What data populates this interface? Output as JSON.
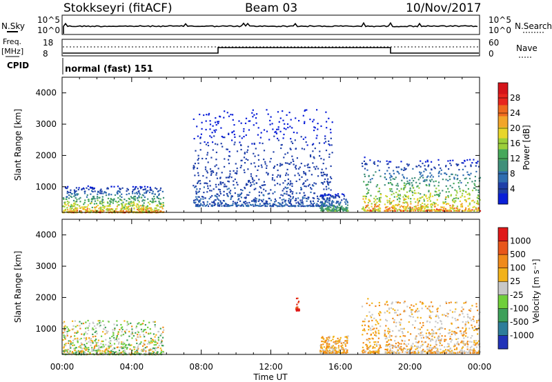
{
  "header": {
    "station": "Stokkseyri (fitACF)",
    "beam": "Beam 03",
    "date": "10/Nov/2017"
  },
  "noise_panel": {
    "left_label": "N.Sky",
    "right_label": "N.Search",
    "left_ticks": [
      "10^5",
      "10^0"
    ],
    "right_ticks": [
      "10^5",
      "10^0"
    ]
  },
  "freq_panel": {
    "left_label_1": "Freq.",
    "left_label_2": "[MHz]",
    "left_ticks": [
      "18",
      "8"
    ],
    "right_label": "Nave",
    "right_ticks": [
      "60",
      "0"
    ],
    "cpid_label": "CPID",
    "cpid_text": "normal (fast) 151"
  },
  "chart_data": [
    {
      "type": "heatmap",
      "name": "power",
      "ylabel": "Slant Range [km]",
      "ylim": [
        180,
        4500
      ],
      "yticks": [
        "4000",
        "3000",
        "2000",
        "1000"
      ],
      "xlabel": "Time UT",
      "xlim_hours": [
        0,
        24
      ],
      "xticks": [
        "00:00",
        "04:00",
        "08:00",
        "12:00",
        "16:00",
        "20:00",
        "00:00"
      ],
      "colorbar": {
        "label": "Power [dB]",
        "ticks": [
          "28",
          "24",
          "20",
          "16",
          "12",
          "8",
          "4"
        ],
        "colors": [
          "#0a1fd8",
          "#1f3fa8",
          "#2f6db0",
          "#3f8f7a",
          "#46a85a",
          "#9ccf3a",
          "#e8d62a",
          "#f2a52a",
          "#ee6a1e",
          "#e8261e",
          "#d4141a"
        ]
      },
      "regions": [
        {
          "start_hour": 0.0,
          "end_hour": 5.8,
          "min_km": 200,
          "max_km": 1050,
          "peak_db": 26
        },
        {
          "start_hour": 7.5,
          "end_hour": 15.5,
          "min_km": 400,
          "max_km": 3500,
          "peak_db": 6
        },
        {
          "start_hour": 14.8,
          "end_hour": 16.4,
          "min_km": 250,
          "max_km": 800,
          "peak_db": 14
        },
        {
          "start_hour": 17.2,
          "end_hour": 18.3,
          "min_km": 250,
          "max_km": 2000,
          "peak_db": 24
        },
        {
          "start_hour": 18.5,
          "end_hour": 24.0,
          "min_km": 250,
          "max_km": 1900,
          "peak_db": 26
        }
      ]
    },
    {
      "type": "heatmap",
      "name": "velocity",
      "ylabel": "Slant Range [km]",
      "ylim": [
        180,
        4500
      ],
      "yticks": [
        "4000",
        "3000",
        "2000",
        "1000"
      ],
      "xlabel": "Time UT",
      "xlim_hours": [
        0,
        24
      ],
      "xticks": [
        "00:00",
        "04:00",
        "08:00",
        "12:00",
        "16:00",
        "20:00",
        "00:00"
      ],
      "colorbar": {
        "label": "Velocity [m s⁻¹]",
        "ticks": [
          "1000",
          "500",
          "100",
          "25",
          "-25",
          "-100",
          "-500",
          "-1000"
        ],
        "colors": [
          "#2233b8",
          "#2e7d9a",
          "#3ea05a",
          "#6fcf3a",
          "#c8c8c8",
          "#f2b21a",
          "#f08a1a",
          "#e8561a",
          "#e01818"
        ]
      },
      "regions": [
        {
          "start_hour": 0.0,
          "end_hour": 5.8,
          "min_km": 200,
          "max_km": 1300,
          "dominant": "mixed green/grey"
        },
        {
          "start_hour": 13.4,
          "end_hour": 13.6,
          "min_km": 1600,
          "max_km": 2000,
          "dominant": "red"
        },
        {
          "start_hour": 14.8,
          "end_hour": 16.4,
          "min_km": 250,
          "max_km": 800,
          "dominant": "orange"
        },
        {
          "start_hour": 17.2,
          "end_hour": 18.3,
          "min_km": 250,
          "max_km": 2000,
          "dominant": "orange"
        },
        {
          "start_hour": 18.5,
          "end_hour": 24.0,
          "min_km": 250,
          "max_km": 1900,
          "dominant": "orange/grey"
        }
      ]
    }
  ]
}
